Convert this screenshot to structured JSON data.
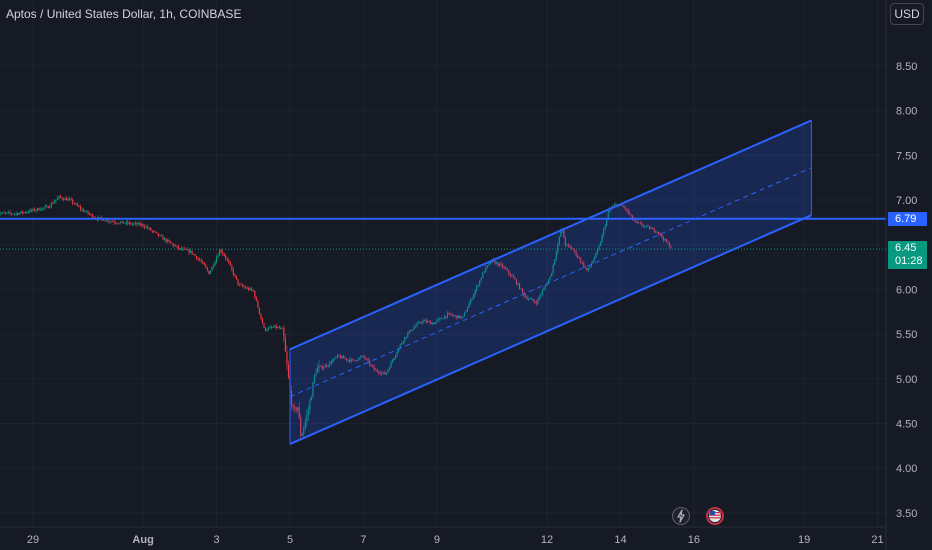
{
  "header": {
    "title": "Aptos / United States Dollar, 1h, COINBASE",
    "currency": "USD"
  },
  "badges": {
    "line_level": "6.79",
    "last_price": "6.45",
    "countdown": "01:28"
  },
  "icons": {
    "bolt": "lightning-bolt-icon",
    "flag": "us-flag-icon"
  },
  "colors": {
    "up": "#089981",
    "down": "#f23645",
    "drawing": "#2962ff",
    "background": "#161a25",
    "grid": "#1f2330"
  },
  "chart_data": {
    "type": "candlestick",
    "title": "Aptos / United States Dollar, 1h, COINBASE",
    "x_ticks": [
      "29",
      "Aug",
      "3",
      "5",
      "7",
      "9",
      "12",
      "14",
      "16",
      "19",
      "21"
    ],
    "x_tick_days": [
      29,
      32,
      34,
      36,
      38,
      40,
      43,
      45,
      47,
      50,
      52
    ],
    "x_unit": "days from July 0 (Aug 1 = 32)",
    "y_ticks": [
      3.5,
      4.0,
      4.5,
      5.0,
      5.5,
      6.0,
      6.5,
      7.0,
      7.5,
      8.0,
      8.5
    ],
    "ylim": [
      3.4,
      9.0
    ],
    "price_path": [
      [
        28.0,
        6.85
      ],
      [
        28.6,
        6.85
      ],
      [
        29.4,
        6.92
      ],
      [
        29.7,
        7.03
      ],
      [
        30.0,
        7.0
      ],
      [
        30.3,
        6.9
      ],
      [
        30.7,
        6.8
      ],
      [
        31.3,
        6.75
      ],
      [
        32.0,
        6.72
      ],
      [
        32.5,
        6.58
      ],
      [
        33.0,
        6.45
      ],
      [
        33.3,
        6.42
      ],
      [
        33.6,
        6.3
      ],
      [
        33.8,
        6.18
      ],
      [
        34.1,
        6.45
      ],
      [
        34.3,
        6.32
      ],
      [
        34.6,
        6.05
      ],
      [
        35.0,
        5.98
      ],
      [
        35.3,
        5.55
      ],
      [
        35.6,
        5.58
      ],
      [
        35.8,
        5.55
      ],
      [
        35.9,
        5.2
      ],
      [
        36.0,
        4.85
      ],
      [
        36.1,
        4.6
      ],
      [
        36.2,
        4.72
      ],
      [
        36.3,
        4.35
      ],
      [
        36.5,
        4.65
      ],
      [
        36.7,
        5.1
      ],
      [
        37.0,
        5.15
      ],
      [
        37.3,
        5.25
      ],
      [
        37.7,
        5.2
      ],
      [
        38.0,
        5.25
      ],
      [
        38.3,
        5.1
      ],
      [
        38.6,
        5.05
      ],
      [
        38.9,
        5.3
      ],
      [
        39.1,
        5.45
      ],
      [
        39.3,
        5.55
      ],
      [
        39.6,
        5.65
      ],
      [
        39.9,
        5.62
      ],
      [
        40.3,
        5.72
      ],
      [
        40.7,
        5.68
      ],
      [
        41.0,
        5.95
      ],
      [
        41.3,
        6.22
      ],
      [
        41.5,
        6.32
      ],
      [
        41.8,
        6.25
      ],
      [
        42.1,
        6.12
      ],
      [
        42.4,
        5.92
      ],
      [
        42.7,
        5.85
      ],
      [
        43.1,
        6.15
      ],
      [
        43.4,
        6.7
      ],
      [
        43.5,
        6.5
      ],
      [
        43.7,
        6.45
      ],
      [
        44.1,
        6.2
      ],
      [
        44.4,
        6.45
      ],
      [
        44.7,
        6.9
      ],
      [
        44.9,
        6.95
      ],
      [
        45.1,
        6.92
      ],
      [
        45.4,
        6.75
      ],
      [
        45.7,
        6.7
      ],
      [
        46.0,
        6.65
      ],
      [
        46.2,
        6.55
      ],
      [
        46.4,
        6.46
      ]
    ],
    "channel": {
      "lower_start": [
        36.0,
        4.27
      ],
      "lower_end": [
        50.2,
        6.83
      ],
      "upper_start": [
        36.0,
        5.33
      ],
      "upper_end": [
        50.2,
        7.89
      ]
    },
    "horizontal_line": 6.79,
    "last_price": 6.45,
    "grid": true,
    "legend": "none"
  }
}
